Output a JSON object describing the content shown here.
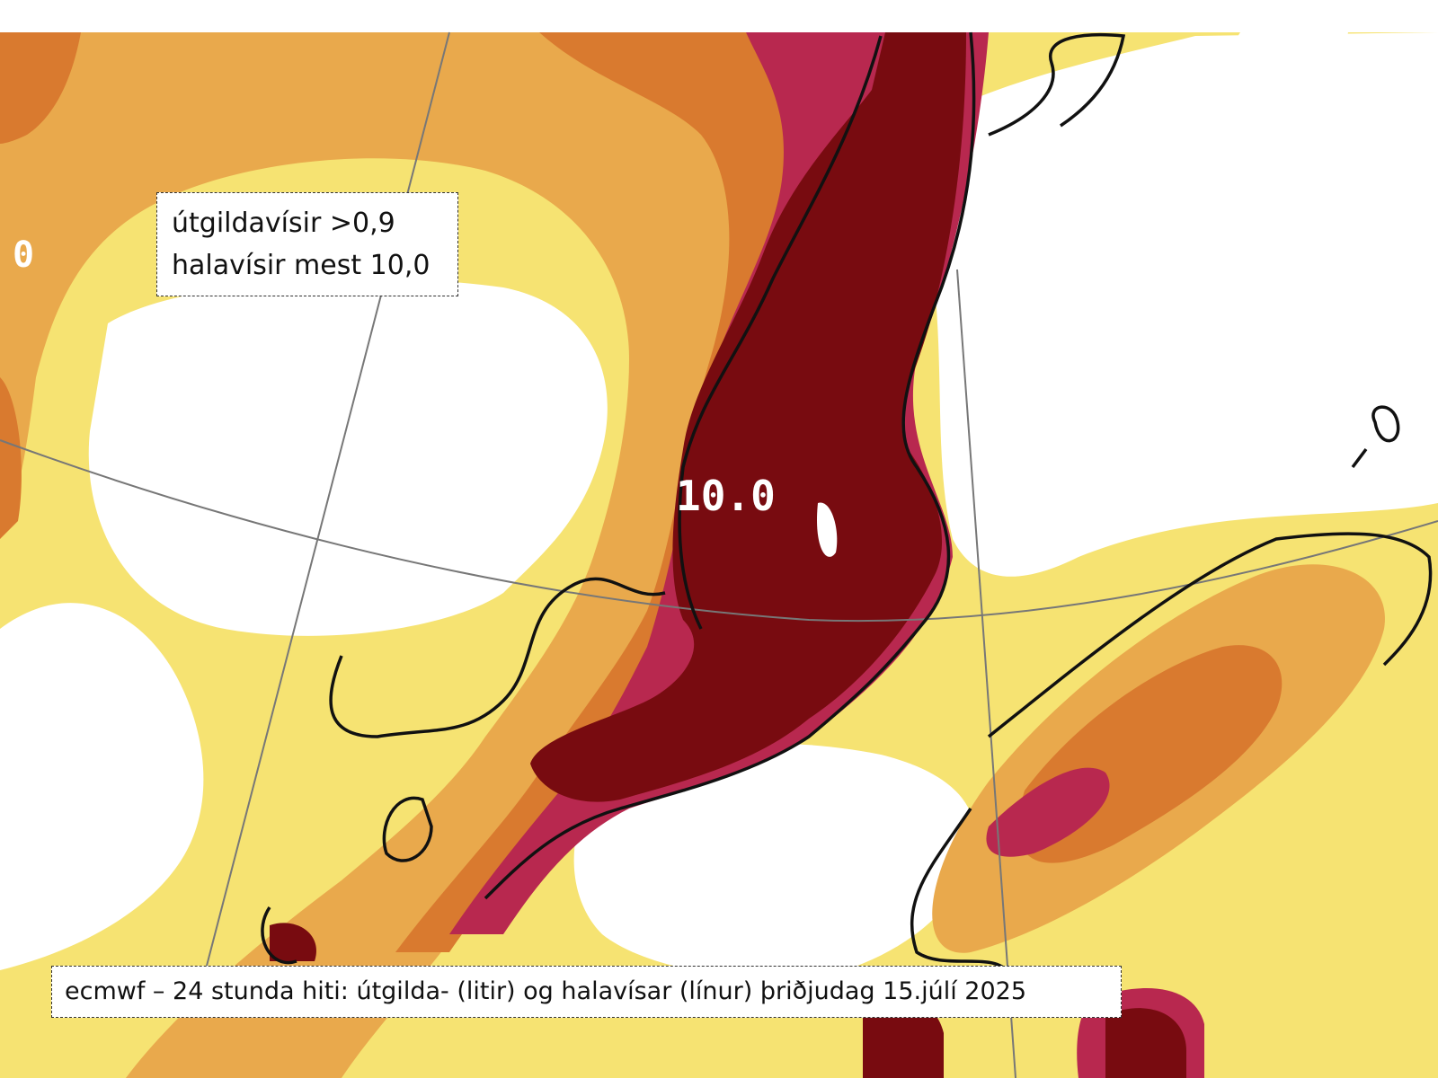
{
  "legend_box": {
    "lines": [
      "útgildavísir >0,9",
      "halavísir mest 10,0"
    ]
  },
  "map_labels": [
    "10.0",
    "0"
  ],
  "caption": "ecmwf – 24 stunda hiti: útgilda- (litir) og halavísar (línur) þriðjudag 15.júlí 2025"
}
